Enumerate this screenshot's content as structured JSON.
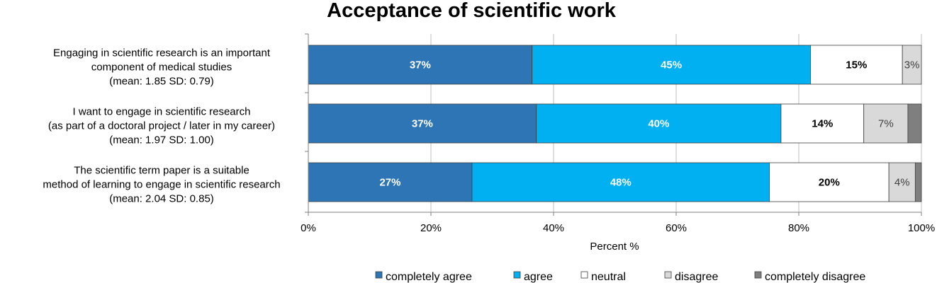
{
  "chart_data": {
    "type": "bar",
    "orientation": "horizontal",
    "stacked": true,
    "title": "Acceptance of scientific work",
    "xlabel": "Percent %",
    "ylabel": "",
    "xlim": [
      0,
      100
    ],
    "x_ticks": [
      "0%",
      "20%",
      "40%",
      "60%",
      "80%",
      "100%"
    ],
    "grid": "vertical",
    "legend_position": "bottom",
    "categories": [
      [
        "Engaging in scientific research is an important",
        "component of medical studies",
        "(mean: 1.85 SD: 0.79)"
      ],
      [
        "I want to engage in scientific research",
        "(as part of a doctoral project / later in my career)",
        "(mean: 1.97 SD: 1.00)"
      ],
      [
        "The scientific term paper is a suitable",
        "method of learning to engage in scientific research",
        "(mean: 2.04 SD: 0.85)"
      ]
    ],
    "series": [
      {
        "name": "completely agree",
        "color": "#2e75b6",
        "values": [
          36.5,
          37.2,
          26.7
        ],
        "labels": [
          "37%",
          "37%",
          "27%"
        ],
        "label_color": "#ffffff",
        "label_bold": true
      },
      {
        "name": "agree",
        "color": "#00b0f0",
        "values": [
          45.4,
          39.9,
          48.5
        ],
        "labels": [
          "45%",
          "40%",
          "48%"
        ],
        "label_color": "#ffffff",
        "label_bold": true
      },
      {
        "name": "neutral",
        "color": "#ffffff",
        "values": [
          15.0,
          13.5,
          19.5
        ],
        "labels": [
          "15%",
          "14%",
          "20%"
        ],
        "label_color": "#000000",
        "label_bold": true
      },
      {
        "name": "disagree",
        "color": "#d9d9d9",
        "values": [
          3.1,
          7.2,
          4.3
        ],
        "labels": [
          "3%",
          "7%",
          "4%"
        ],
        "label_color": "#404040",
        "label_bold": false
      },
      {
        "name": "completely disagree",
        "color": "#7f7f7f",
        "values": [
          0.0,
          2.2,
          1.0
        ],
        "labels": [
          "",
          "",
          ""
        ],
        "label_color": "#ffffff",
        "label_bold": false
      }
    ]
  }
}
